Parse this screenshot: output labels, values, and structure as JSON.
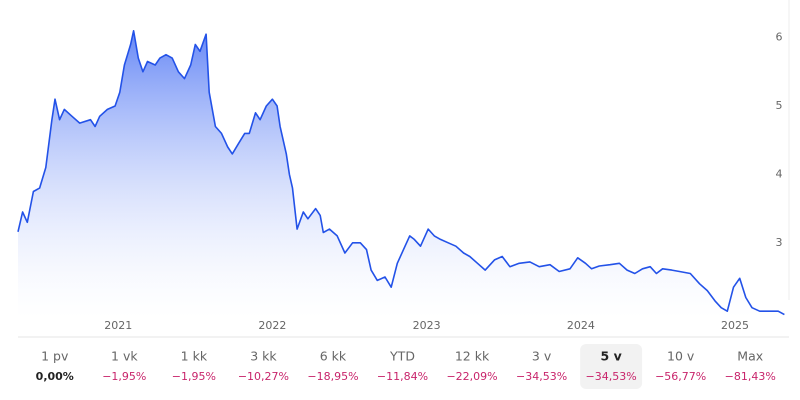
{
  "chart_data": {
    "type": "line",
    "x": [
      2020.35,
      2020.38,
      2020.41,
      2020.45,
      2020.49,
      2020.53,
      2020.57,
      2020.59,
      2020.62,
      2020.65,
      2020.7,
      2020.75,
      2020.82,
      2020.85,
      2020.88,
      2020.93,
      2020.98,
      2021.01,
      2021.04,
      2021.08,
      2021.1,
      2021.13,
      2021.16,
      2021.19,
      2021.24,
      2021.27,
      2021.31,
      2021.35,
      2021.39,
      2021.43,
      2021.47,
      2021.5,
      2021.53,
      2021.57,
      2021.59,
      2021.63,
      2021.67,
      2021.71,
      2021.74,
      2021.78,
      2021.82,
      2021.85,
      2021.89,
      2021.92,
      2021.96,
      2022.0,
      2022.03,
      2022.05,
      2022.09,
      2022.11,
      2022.13,
      2022.16,
      2022.2,
      2022.23,
      2022.28,
      2022.31,
      2022.33,
      2022.37,
      2022.42,
      2022.47,
      2022.52,
      2022.57,
      2022.61,
      2022.64,
      2022.68,
      2022.73,
      2022.77,
      2022.81,
      2022.85,
      2022.89,
      2022.92,
      2022.96,
      2023.01,
      2023.05,
      2023.09,
      2023.14,
      2023.19,
      2023.24,
      2023.28,
      2023.33,
      2023.38,
      2023.44,
      2023.49,
      2023.54,
      2023.6,
      2023.67,
      2023.73,
      2023.8,
      2023.86,
      2023.93,
      2023.98,
      2024.03,
      2024.07,
      2024.12,
      2024.19,
      2024.25,
      2024.3,
      2024.35,
      2024.4,
      2024.45,
      2024.49,
      2024.53,
      2024.59,
      2024.64,
      2024.71,
      2024.77,
      2024.82,
      2024.87,
      2024.91,
      2024.95,
      2024.99,
      2025.03,
      2025.07,
      2025.11,
      2025.16,
      2025.23,
      2025.28,
      2025.32
    ],
    "series": [
      {
        "color": "#2352e8",
        "values": [
          3.16,
          3.45,
          3.3,
          3.75,
          3.8,
          4.1,
          4.8,
          5.1,
          4.8,
          4.95,
          4.85,
          4.75,
          4.8,
          4.7,
          4.85,
          4.95,
          5.0,
          5.2,
          5.6,
          5.9,
          6.1,
          5.7,
          5.5,
          5.65,
          5.6,
          5.7,
          5.75,
          5.7,
          5.5,
          5.4,
          5.6,
          5.9,
          5.8,
          6.05,
          5.2,
          4.7,
          4.6,
          4.4,
          4.3,
          4.45,
          4.6,
          4.6,
          4.9,
          4.8,
          5.0,
          5.1,
          5.0,
          4.7,
          4.3,
          4.0,
          3.8,
          3.2,
          3.45,
          3.35,
          3.5,
          3.4,
          3.15,
          3.2,
          3.1,
          2.85,
          3.0,
          3.0,
          2.9,
          2.6,
          2.45,
          2.5,
          2.35,
          2.7,
          2.9,
          3.1,
          3.05,
          2.95,
          3.2,
          3.1,
          3.05,
          3.0,
          2.95,
          2.85,
          2.8,
          2.7,
          2.6,
          2.75,
          2.8,
          2.65,
          2.7,
          2.72,
          2.65,
          2.68,
          2.58,
          2.62,
          2.78,
          2.7,
          2.62,
          2.66,
          2.68,
          2.7,
          2.6,
          2.55,
          2.62,
          2.65,
          2.55,
          2.62,
          2.6,
          2.58,
          2.55,
          2.4,
          2.3,
          2.15,
          2.05,
          2.0,
          2.35,
          2.48,
          2.2,
          2.05,
          2.0,
          2.0,
          2.0,
          1.95
        ]
      }
    ],
    "xlim": [
      2020.35,
      2025.35
    ],
    "xticks": [
      2021,
      2022,
      2023,
      2024,
      2025
    ],
    "ylim": [
      1.9,
      6.55
    ],
    "yticks": [
      3,
      4,
      5,
      6
    ]
  },
  "periods": [
    {
      "label": "1 pv",
      "change": "0,00%"
    },
    {
      "label": "1 vk",
      "change": "−1,95%"
    },
    {
      "label": "1 kk",
      "change": "−1,95%"
    },
    {
      "label": "3 kk",
      "change": "−10,27%"
    },
    {
      "label": "6 kk",
      "change": "−18,95%"
    },
    {
      "label": "YTD",
      "change": "−11,84%"
    },
    {
      "label": "12 kk",
      "change": "−22,09%"
    },
    {
      "label": "3 v",
      "change": "−34,53%"
    },
    {
      "label": "5 v",
      "change": "−34,53%"
    },
    {
      "label": "10 v",
      "change": "−56,77%"
    },
    {
      "label": "Max",
      "change": "−81,43%"
    }
  ],
  "selected": 8
}
